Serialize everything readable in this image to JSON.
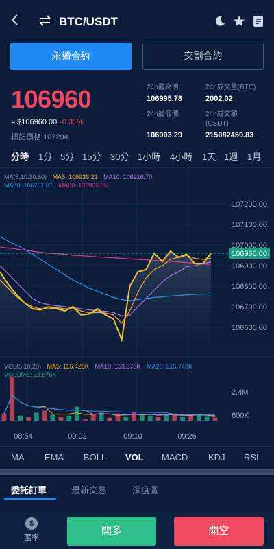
{
  "header": {
    "back_icon": "chevron-left-icon",
    "swap_icon": "swap-icon",
    "pair": "BTC/USDT",
    "icons": [
      "moon-icon",
      "star-icon",
      "document-icon"
    ]
  },
  "contract_tabs": [
    {
      "label": "永續合約",
      "active": true
    },
    {
      "label": "交割合約",
      "active": false
    }
  ],
  "ticker": {
    "last_price": "106960",
    "approx": "≈ $106960.00",
    "change": "-0.31%",
    "mark_label": "標記價格",
    "mark_value": "107294"
  },
  "stats": {
    "high_label": "24h最高價",
    "high_value": "106995.78",
    "vol_btc_label": "24h成交量(BTC)",
    "vol_btc_value": "2002.02",
    "low_label": "24h最低價",
    "low_value": "106903.29",
    "vol_usdt_label": "24h成交額",
    "vol_usdt_label2": "(USDT)",
    "vol_usdt_value": "215082459.83"
  },
  "intervals": [
    "分時",
    "1分",
    "5分",
    "15分",
    "30分",
    "1小時",
    "4小時",
    "1天",
    "1週",
    "1月"
  ],
  "active_interval": "分時",
  "ma_legend": {
    "params": "MA(5,10,30,60)",
    "ma5": "MA5: 106936.21",
    "ma10": "MA10: 106916.70",
    "ma30": "MA30: 106761.87",
    "ma60": "MA60: 106906.05"
  },
  "vol_legend": {
    "params": "VOL(5,10,20)",
    "ma5": "MA5: 116.425K",
    "ma10": "MA10: 153.378K",
    "ma20": "MA20: 215.743K",
    "volume": "VOLUME: 23.676K"
  },
  "colors": {
    "ma5": "#f5a623",
    "ma10": "#b07be8",
    "ma30": "#2f93e6",
    "ma60": "#e0398a",
    "price_line": "#f2c233",
    "up": "#1fa37a",
    "down": "#c9475a",
    "current_tag": "#1a9f83"
  },
  "chart_data": {
    "type": "line",
    "price_axis": [
      "107200.00",
      "107100.00",
      "107000.00",
      "106900.00",
      "106800.00",
      "106700.00",
      "106600.00"
    ],
    "current_price": "106960.00",
    "volume_axis": [
      "2.4M",
      "600K"
    ],
    "time_axis": [
      "08:54",
      "09:02",
      "09:10",
      "09:26"
    ],
    "ylim": [
      106500,
      107280
    ],
    "price": [
      106870,
      106810,
      106760,
      106720,
      106690,
      106685,
      106700,
      106690,
      106680,
      106700,
      106660,
      106665,
      106690,
      106660,
      106640,
      106540,
      106800,
      106870,
      106880,
      106960,
      106920,
      106970,
      106940,
      106955,
      106910,
      106910,
      106960
    ],
    "ma5": [
      106830,
      106790,
      106750,
      106720,
      106700,
      106690,
      106690,
      106695,
      106690,
      106690,
      106680,
      106670,
      106672,
      106670,
      106660,
      106620,
      106680,
      106770,
      106840,
      106880,
      106900,
      106930,
      106940,
      106950,
      106935,
      106930,
      106936
    ],
    "ma10": [
      106900,
      106860,
      106820,
      106780,
      106740,
      106720,
      106710,
      106705,
      106700,
      106695,
      106690,
      106685,
      106680,
      106678,
      106672,
      106655,
      106660,
      106700,
      106740,
      106780,
      106820,
      106850,
      106870,
      106895,
      106900,
      106910,
      106917
    ],
    "ma30": [
      107040,
      107020,
      107000,
      106980,
      106955,
      106930,
      106905,
      106880,
      106855,
      106830,
      106810,
      106790,
      106775,
      106760,
      106745,
      106735,
      106730,
      106735,
      106740,
      106745,
      106748,
      106752,
      106755,
      106758,
      106760,
      106761,
      106762
    ],
    "ma60": [
      106990,
      106985,
      106980,
      106975,
      106970,
      106965,
      106960,
      106958,
      106955,
      106950,
      106948,
      106945,
      106942,
      106940,
      106938,
      106935,
      106932,
      106930,
      106928,
      106925,
      106922,
      106920,
      106918,
      106915,
      106912,
      106908,
      106906
    ],
    "volume": [
      0.35,
      2.2,
      0.25,
      0.18,
      0.4,
      0.5,
      0.3,
      0.2,
      0.25,
      0.7,
      0.1,
      0.3,
      0.4,
      0.15,
      0.35,
      0.2,
      0.45,
      0.3,
      0.25,
      0.2,
      0.3,
      0.35,
      0.2,
      0.25,
      0.3,
      0.22,
      0.15
    ],
    "volume_up": [
      false,
      false,
      true,
      false,
      true,
      false,
      true,
      false,
      true,
      true,
      false,
      false,
      true,
      false,
      false,
      true,
      false,
      true,
      true,
      false,
      true,
      false,
      true,
      false,
      true,
      true,
      false
    ]
  },
  "indicators": [
    "MA",
    "EMA",
    "BOLL",
    "VOL",
    "MACD",
    "KDJ",
    "RSI"
  ],
  "active_indicator": "VOL",
  "order_tabs": [
    "委託訂單",
    "最新交易",
    "深度圖"
  ],
  "footer": {
    "rate_label": "匯率",
    "coin_symbol": "$",
    "long": "開多",
    "short": "開空"
  }
}
